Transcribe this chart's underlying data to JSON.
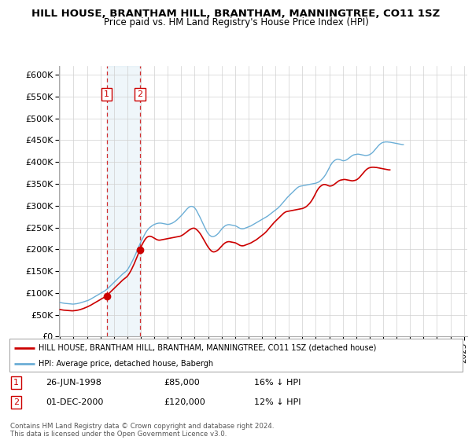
{
  "title": "HILL HOUSE, BRANTHAM HILL, BRANTHAM, MANNINGTREE, CO11 1SZ",
  "subtitle": "Price paid vs. HM Land Registry's House Price Index (HPI)",
  "legend_line1": "HILL HOUSE, BRANTHAM HILL, BRANTHAM, MANNINGTREE, CO11 1SZ (detached house)",
  "legend_line2": "HPI: Average price, detached house, Babergh",
  "footer": "Contains HM Land Registry data © Crown copyright and database right 2024.\nThis data is licensed under the Open Government Licence v3.0.",
  "transactions": [
    {
      "id": 1,
      "date": "26-JUN-1998",
      "price": 85000,
      "pct": "16% ↓ HPI",
      "x": 1998.458
    },
    {
      "id": 2,
      "date": "01-DEC-2000",
      "price": 120000,
      "pct": "12% ↓ HPI",
      "x": 2000.917
    }
  ],
  "hpi_color": "#6baed6",
  "price_color": "#cc0000",
  "ylim": [
    0,
    620000
  ],
  "xlim_start": 1994.92,
  "xlim_end": 2025.25,
  "hpi_data_monthly": {
    "start_year": 1995,
    "start_month": 1,
    "values": [
      78000,
      77500,
      77000,
      76500,
      76200,
      76000,
      75800,
      75500,
      75200,
      75000,
      74800,
      74500,
      74500,
      74800,
      75200,
      75500,
      76000,
      76500,
      77200,
      78000,
      78800,
      79500,
      80200,
      81000,
      82000,
      83000,
      84200,
      85500,
      87000,
      88500,
      90000,
      91500,
      93000,
      94500,
      96000,
      97500,
      99000,
      100500,
      102000,
      103500,
      105000,
      107000,
      109000,
      111500,
      114000,
      116500,
      119000,
      121500,
      124000,
      126500,
      129000,
      131500,
      134000,
      136500,
      139000,
      141500,
      144000,
      146000,
      148000,
      150000,
      153000,
      157000,
      161500,
      166000,
      171000,
      176000,
      181500,
      187000,
      193000,
      199000,
      205000,
      211000,
      217000,
      222000,
      227000,
      232000,
      237000,
      241000,
      244500,
      247500,
      250000,
      252000,
      254000,
      255500,
      257000,
      258000,
      259000,
      259500,
      260000,
      260000,
      260000,
      259500,
      259000,
      258500,
      258000,
      257500,
      257000,
      257500,
      258000,
      259000,
      260000,
      261500,
      263000,
      265000,
      267000,
      269500,
      272000,
      274500,
      277000,
      280000,
      283000,
      286000,
      289000,
      292000,
      294500,
      296500,
      298000,
      298500,
      298000,
      297000,
      295000,
      291500,
      287000,
      282000,
      277000,
      272000,
      266500,
      261000,
      255500,
      250000,
      245000,
      240000,
      236000,
      233000,
      231000,
      229500,
      229000,
      229500,
      230500,
      232000,
      234000,
      236500,
      239500,
      243000,
      246000,
      249000,
      251500,
      253500,
      255000,
      256000,
      256500,
      256500,
      256000,
      255500,
      255000,
      254500,
      254000,
      253000,
      251500,
      250000,
      248500,
      247500,
      247000,
      247000,
      247500,
      248500,
      249500,
      250500,
      251500,
      252500,
      253500,
      255000,
      256500,
      258000,
      259500,
      261000,
      262500,
      264000,
      265500,
      267000,
      268500,
      270000,
      271500,
      273000,
      274500,
      276000,
      278000,
      280000,
      282000,
      284000,
      286000,
      288000,
      290000,
      292000,
      294000,
      296500,
      299000,
      302000,
      305000,
      308000,
      311000,
      314000,
      317000,
      320000,
      322500,
      325000,
      327500,
      330000,
      332500,
      335000,
      337500,
      340000,
      342000,
      343500,
      344500,
      345000,
      345500,
      346000,
      346500,
      347000,
      347500,
      348000,
      348500,
      349000,
      349500,
      350000,
      350500,
      351000,
      351500,
      352500,
      353500,
      355000,
      357000,
      359500,
      362000,
      365000,
      368500,
      372500,
      377000,
      382000,
      387000,
      392000,
      396000,
      399500,
      402000,
      404000,
      405500,
      406500,
      406500,
      406000,
      405000,
      404000,
      403000,
      403000,
      403500,
      404500,
      406000,
      408000,
      410000,
      412000,
      414000,
      415500,
      416500,
      417000,
      417500,
      418000,
      418000,
      417500,
      417000,
      416500,
      416000,
      415500,
      415000,
      415000,
      415500,
      416000,
      417000,
      418500,
      420500,
      423000,
      426000,
      429000,
      432000,
      435000,
      438000,
      440500,
      442500,
      444000,
      445000,
      445500,
      446000,
      446000,
      446000,
      445500,
      445500,
      445000,
      444500,
      444000,
      443500,
      443000,
      442500,
      442000,
      441500,
      441000,
      440500,
      440000,
      440000
    ]
  },
  "price_data_monthly": {
    "start_year": 1995,
    "start_month": 1,
    "values": [
      62000,
      61500,
      61000,
      60700,
      60400,
      60200,
      60000,
      59800,
      59600,
      59400,
      59200,
      59000,
      59200,
      59500,
      59800,
      60200,
      60700,
      61300,
      62000,
      62800,
      63700,
      64600,
      65600,
      66700,
      67800,
      69000,
      70200,
      71500,
      73000,
      74500,
      76000,
      77500,
      79000,
      80500,
      82000,
      83500,
      85000,
      86500,
      88000,
      89500,
      91000,
      93000,
      95200,
      97500,
      100000,
      102500,
      105000,
      107500,
      110000,
      112500,
      115000,
      117500,
      120000,
      122500,
      125000,
      127500,
      130000,
      132000,
      134000,
      136000,
      138500,
      142000,
      146000,
      150500,
      155500,
      161000,
      166500,
      172500,
      178500,
      185000,
      191500,
      198000,
      204500,
      210000,
      215000,
      219500,
      223500,
      226500,
      228500,
      229500,
      230000,
      229500,
      228500,
      227000,
      225500,
      224000,
      222500,
      221500,
      221000,
      221000,
      221500,
      222000,
      222500,
      223000,
      223500,
      224000,
      224500,
      225000,
      225500,
      226000,
      226500,
      227000,
      227500,
      228000,
      228500,
      229000,
      229500,
      230000,
      231000,
      232500,
      234000,
      236000,
      238000,
      240000,
      242000,
      244000,
      245500,
      247000,
      248000,
      248500,
      248000,
      246500,
      244500,
      242000,
      239000,
      235500,
      231500,
      227000,
      222500,
      218000,
      213500,
      209000,
      205000,
      201500,
      198500,
      196000,
      194500,
      194000,
      194500,
      195500,
      197000,
      199000,
      201500,
      204500,
      207000,
      210000,
      212500,
      214500,
      216000,
      217000,
      217500,
      217500,
      217000,
      216500,
      216000,
      215500,
      215000,
      214000,
      212500,
      211000,
      209500,
      208500,
      208000,
      208000,
      208500,
      209500,
      210500,
      211500,
      212500,
      213500,
      214500,
      216000,
      217500,
      219000,
      220500,
      222000,
      224000,
      226000,
      228000,
      230000,
      232000,
      234000,
      236000,
      238500,
      241000,
      244000,
      247000,
      250000,
      253000,
      256000,
      259000,
      262000,
      264500,
      267000,
      269500,
      272000,
      274500,
      277000,
      279500,
      282000,
      284000,
      285500,
      286500,
      287000,
      287500,
      288000,
      288500,
      289000,
      289500,
      290000,
      290500,
      291000,
      291500,
      292000,
      292500,
      293000,
      293500,
      294500,
      295500,
      297000,
      299000,
      301500,
      304000,
      307000,
      310500,
      314500,
      319000,
      324000,
      329000,
      334000,
      338000,
      341500,
      344000,
      346000,
      347500,
      348500,
      348500,
      348000,
      347000,
      346000,
      345000,
      345000,
      345500,
      346500,
      348000,
      350000,
      352000,
      354000,
      356000,
      357500,
      358500,
      359000,
      359500,
      360000,
      360000,
      359500,
      359000,
      358500,
      358000,
      357500,
      357000,
      357000,
      357500,
      358000,
      359000,
      360500,
      362500,
      365000,
      368000,
      371000,
      374000,
      377000,
      380000,
      382500,
      384500,
      386000,
      387000,
      387500,
      388000,
      388000,
      388000,
      387500,
      387500,
      387000,
      386500,
      386000,
      385500,
      385000,
      384500,
      384000,
      383500,
      383000,
      382500,
      382000,
      382000
    ]
  }
}
